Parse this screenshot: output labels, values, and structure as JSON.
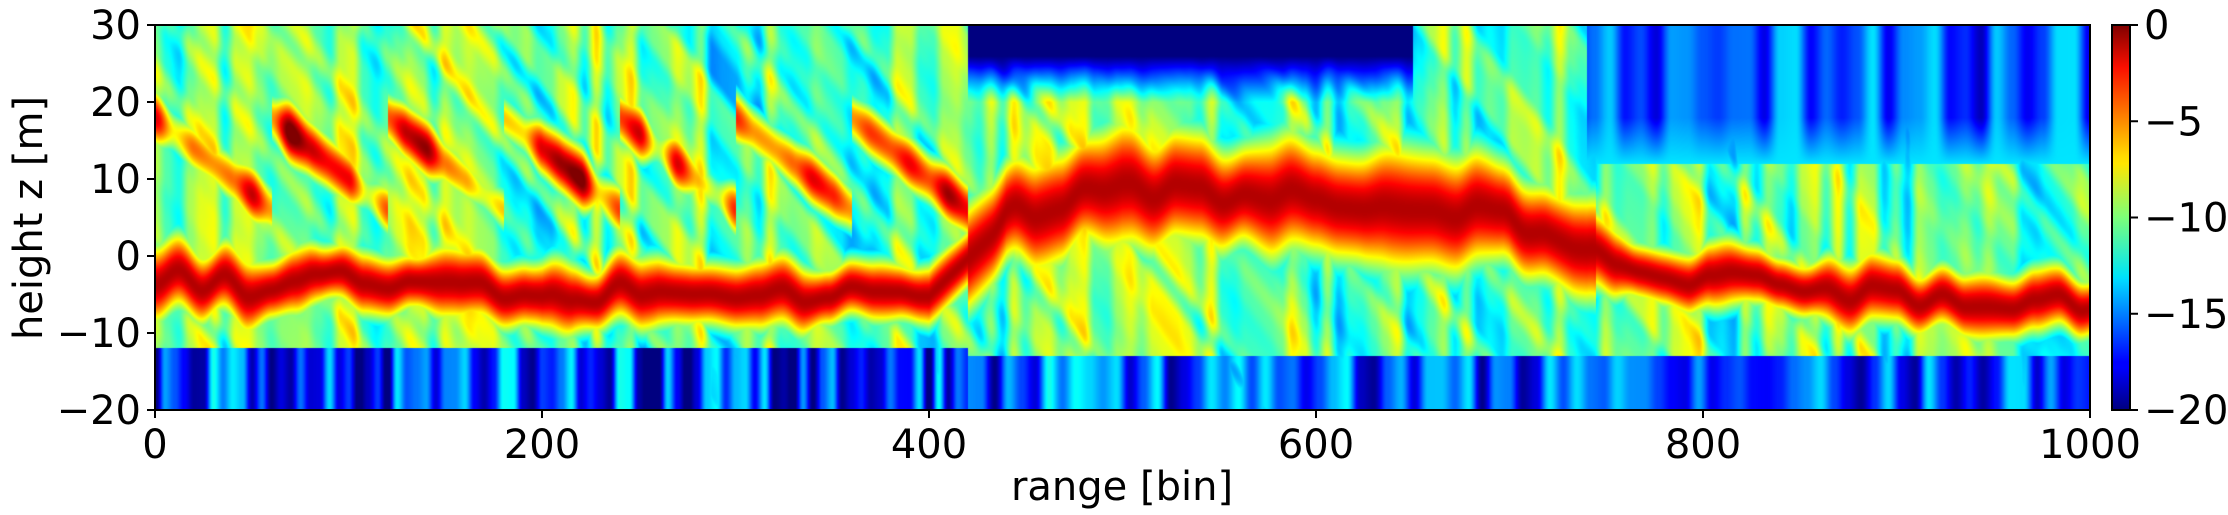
{
  "chart_data": {
    "type": "heatmap",
    "title": "",
    "xlabel": "range [bin]",
    "ylabel": "height z [m]",
    "xlim": [
      0,
      1000
    ],
    "ylim": [
      -20,
      30
    ],
    "x_ticks": [
      0,
      200,
      400,
      600,
      800,
      1000
    ],
    "x_tick_labels": [
      "0",
      "200",
      "400",
      "600",
      "800",
      "1000"
    ],
    "y_ticks": [
      -20,
      -10,
      0,
      10,
      20,
      30
    ],
    "y_tick_labels": [
      "−20",
      "−10",
      "0",
      "10",
      "20",
      "30"
    ],
    "colorbar": {
      "colormap": "jet",
      "range": [
        -20,
        0
      ],
      "ticks": [
        0,
        -5,
        -10,
        -15,
        -20
      ],
      "tick_labels": [
        "0",
        "−5",
        "−10",
        "−15",
        "−20"
      ]
    },
    "value_range": [
      -20,
      0
    ],
    "ridge": {
      "x": [
        0,
        50,
        80,
        150,
        200,
        260,
        300,
        400,
        440,
        500,
        560,
        600,
        640,
        700,
        740,
        800,
        900,
        1000
      ],
      "z": [
        -3,
        -4,
        -3,
        -4,
        -6,
        -4,
        -5,
        -5,
        5,
        9,
        8,
        7,
        6,
        5,
        0,
        -3,
        -5,
        -6
      ]
    },
    "notes": "Signal level in dB vs range bin and height; dominant red ridge near z≈-4 for bins 0-420 and 760-1000, elevated near z≈8 for bins 420-740; deep blue (-20 dB) band at top z>20 for bins 420-650."
  }
}
